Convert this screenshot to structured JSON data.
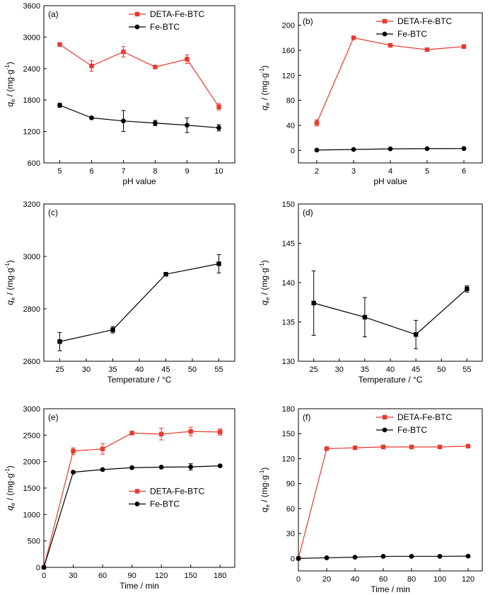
{
  "chart_data": [
    {
      "type": "line",
      "panel": "(a)",
      "xlabel": "pH value",
      "ylabel_main": "q",
      "ylabel_sub": "e",
      "ylabel_unit": " / (mg·g",
      "ylabel_sup": "-1",
      "ylabel_close": ")",
      "xlim": [
        4.5,
        10.5
      ],
      "ylim": [
        600,
        3600
      ],
      "xticks": [
        5,
        6,
        7,
        8,
        9,
        10
      ],
      "yticks": [
        600,
        1200,
        1800,
        2400,
        3000,
        3600
      ],
      "legend": "top-right",
      "series": [
        {
          "name": "DETA-Fe-BTC",
          "color": "#e8392c",
          "marker": "square",
          "x": [
            5,
            6,
            7,
            8,
            9,
            10
          ],
          "y": [
            2860,
            2450,
            2720,
            2430,
            2580,
            1670
          ],
          "err": [
            30,
            100,
            100,
            20,
            80,
            60
          ]
        },
        {
          "name": "Fe-BTC",
          "color": "#000000",
          "marker": "circle",
          "x": [
            5,
            6,
            7,
            8,
            9,
            10
          ],
          "y": [
            1700,
            1460,
            1400,
            1360,
            1320,
            1270
          ],
          "err": [
            40,
            20,
            200,
            50,
            140,
            60
          ]
        }
      ]
    },
    {
      "type": "line",
      "panel": "(b)",
      "xlabel": "pH value",
      "ylabel_main": "q",
      "ylabel_sub": "e",
      "ylabel_unit": " / (mg·g",
      "ylabel_sup": "-1",
      "ylabel_close": ")",
      "xlim": [
        1.5,
        6.5
      ],
      "ylim": [
        -20,
        220
      ],
      "xticks": [
        2,
        3,
        4,
        5,
        6
      ],
      "yticks": [
        0,
        40,
        80,
        120,
        160,
        200
      ],
      "legend": "top-right",
      "series": [
        {
          "name": "DETA-Fe-BTC",
          "color": "#e8392c",
          "marker": "square",
          "x": [
            2,
            3,
            4,
            5,
            6
          ],
          "y": [
            44,
            180,
            168,
            161,
            166
          ],
          "err": [
            5,
            1,
            1,
            1,
            1
          ]
        },
        {
          "name": "Fe-BTC",
          "color": "#000000",
          "marker": "circle",
          "x": [
            2,
            3,
            4,
            5,
            6
          ],
          "y": [
            0.5,
            1.5,
            2.5,
            2.8,
            3.0
          ],
          "err": [
            0,
            0,
            0,
            0,
            0
          ]
        }
      ]
    },
    {
      "type": "line",
      "panel": "(c)",
      "xlabel": "Temperature / °C",
      "ylabel_main": "q",
      "ylabel_sub": "e",
      "ylabel_unit": " / (mg·g",
      "ylabel_sup": "-1",
      "ylabel_close": ")",
      "xlim": [
        22,
        58
      ],
      "ylim": [
        2600,
        3200
      ],
      "xticks": [
        25,
        30,
        35,
        40,
        45,
        50,
        55
      ],
      "yticks": [
        2600,
        2800,
        3000,
        3200
      ],
      "legend": "none",
      "series": [
        {
          "name": "",
          "color": "#000000",
          "marker": "square",
          "x": [
            25,
            35,
            45,
            55
          ],
          "y": [
            2675,
            2720,
            2932,
            2972
          ],
          "err": [
            35,
            12,
            5,
            35
          ]
        }
      ]
    },
    {
      "type": "line",
      "panel": "(d)",
      "xlabel": "Temperature / °C",
      "ylabel_main": "q",
      "ylabel_sub": "e",
      "ylabel_unit": " / (mg·g",
      "ylabel_sup": "-1",
      "ylabel_close": ")",
      "xlim": [
        22,
        58
      ],
      "ylim": [
        130,
        150
      ],
      "xticks": [
        25,
        30,
        35,
        40,
        45,
        50,
        55
      ],
      "yticks": [
        130,
        135,
        140,
        145,
        150
      ],
      "legend": "none",
      "series": [
        {
          "name": "",
          "color": "#000000",
          "marker": "square",
          "x": [
            25,
            35,
            45,
            55
          ],
          "y": [
            137.4,
            135.6,
            133.4,
            139.2
          ],
          "err": [
            4.1,
            2.5,
            1.8,
            0.4
          ]
        }
      ]
    },
    {
      "type": "line",
      "panel": "(e)",
      "xlabel": "Time / min",
      "ylabel_main": "q",
      "ylabel_sub": "e",
      "ylabel_unit": " / (mg·g",
      "ylabel_sup": "-1",
      "ylabel_close": ")",
      "xlim": [
        0,
        195
      ],
      "ylim": [
        0,
        3000
      ],
      "xticks": [
        0,
        30,
        60,
        90,
        120,
        150,
        180
      ],
      "yticks": [
        0,
        500,
        1000,
        1500,
        2000,
        2500,
        3000
      ],
      "legend": "middle-right",
      "series": [
        {
          "name": "DETA-Fe-BTC",
          "color": "#e8392c",
          "marker": "square",
          "x": [
            0,
            30,
            60,
            90,
            120,
            150,
            180
          ],
          "y": [
            0,
            2200,
            2240,
            2540,
            2520,
            2570,
            2560
          ],
          "err": [
            0,
            60,
            100,
            30,
            110,
            80,
            60
          ]
        },
        {
          "name": "Fe-BTC",
          "color": "#000000",
          "marker": "circle",
          "x": [
            0,
            30,
            60,
            90,
            120,
            150,
            180
          ],
          "y": [
            0,
            1800,
            1850,
            1885,
            1895,
            1900,
            1920
          ],
          "err": [
            0,
            20,
            20,
            20,
            20,
            60,
            20
          ]
        }
      ]
    },
    {
      "type": "line",
      "panel": "(f)",
      "xlabel": "Time / min",
      "ylabel_main": "q",
      "ylabel_sub": "e",
      "ylabel_unit": " / (mg·g",
      "ylabel_sup": "-1",
      "ylabel_close": ")",
      "xlim": [
        0,
        130
      ],
      "ylim": [
        -15,
        180
      ],
      "xticks": [
        0,
        20,
        40,
        60,
        80,
        100,
        120
      ],
      "yticks": [
        0,
        30,
        60,
        90,
        120,
        150,
        180
      ],
      "legend": "top-right",
      "series": [
        {
          "name": "DETA-Fe-BTC",
          "color": "#e8392c",
          "marker": "square",
          "x": [
            0,
            20,
            40,
            60,
            80,
            100,
            120
          ],
          "y": [
            0,
            132,
            133,
            134,
            134,
            134,
            135
          ],
          "err": [
            0,
            1,
            1,
            2,
            1,
            1,
            1
          ]
        },
        {
          "name": "Fe-BTC",
          "color": "#000000",
          "marker": "circle",
          "x": [
            0,
            20,
            40,
            60,
            80,
            100,
            120
          ],
          "y": [
            0,
            0.8,
            1.5,
            2.5,
            2.5,
            2.5,
            2.8
          ],
          "err": [
            0,
            0,
            0,
            0,
            0,
            0,
            0
          ]
        }
      ]
    }
  ]
}
